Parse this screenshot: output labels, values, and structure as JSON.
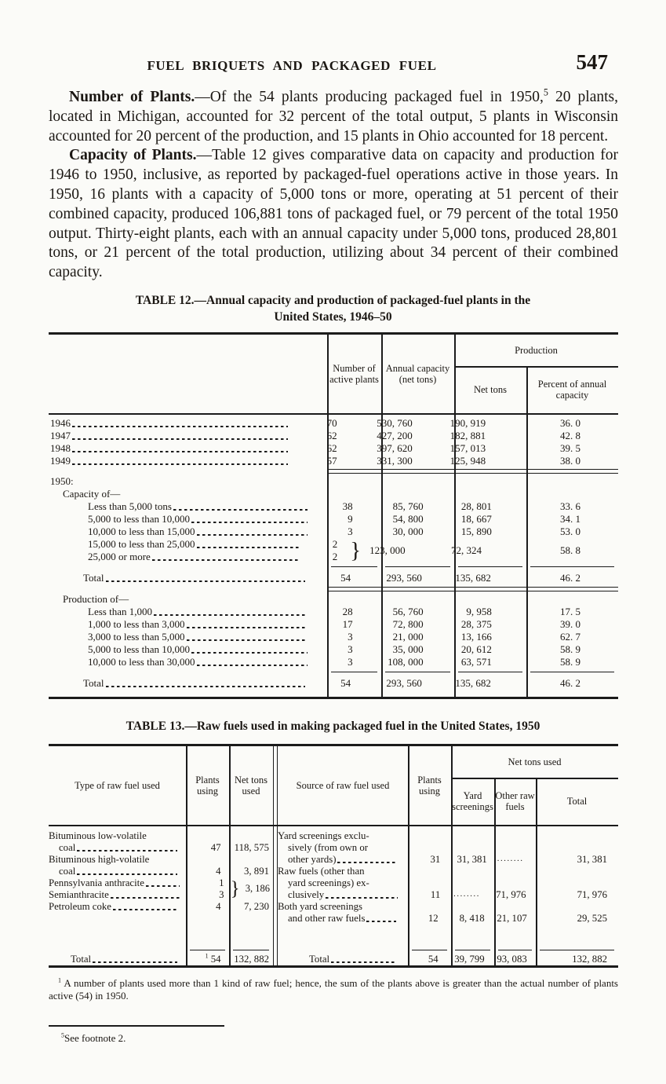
{
  "page": {
    "running_head": "FUEL BRIQUETS AND PACKAGED FUEL",
    "page_number": "547"
  },
  "paragraphs": {
    "p1": {
      "lead": "Number of Plants.",
      "pre": "—Of the 54 plants producing packaged fuel in 1950,",
      "sup": "5",
      "post": " 20 plants, located in Michigan, accounted for 32 percent of the total output, 5 plants in Wisconsin accounted for 20 percent of the production, and 15 plants in Ohio accounted for 18 percent."
    },
    "p2": {
      "lead": "Capacity of Plants.",
      "body": "—Table 12 gives comparative data on capacity and production for 1946 to 1950, inclusive, as reported by packaged-fuel operations active in those years.  In 1950, 16 plants with a capacity of 5,000 tons or more, operating at 51 percent of their combined capacity, produced 106,881 tons of packaged fuel, or 79 percent of the total 1950 output.  Thirty-eight plants, each with an annual capacity under 5,000 tons, produced 28,801 tons, or 21 percent of the total production, utilizing about 34 percent of their combined capacity."
    }
  },
  "table12": {
    "title_label": "TABLE 12.",
    "title_line1": "—Annual capacity and production of packaged-fuel plants in the",
    "title_line2": "United States, 1946–50",
    "headers": {
      "plants": "Number of active plants",
      "capacity": "Annual ca­pacity (net tons)",
      "production": "Production",
      "net": "Net tons",
      "pct": "Percent of annual capacity"
    },
    "brace": "}",
    "rows_years": [
      {
        "label": "1946",
        "plants": "70",
        "capacity": "530, 760",
        "net": "190, 919",
        "pct": "36. 0"
      },
      {
        "label": "1947",
        "plants": "62",
        "capacity": "427, 200",
        "net": "182, 881",
        "pct": "42. 8"
      },
      {
        "label": "1948",
        "plants": "62",
        "capacity": "397, 620",
        "net": "157, 013",
        "pct": "39. 5"
      },
      {
        "label": "1949",
        "plants": "57",
        "capacity": "331, 300",
        "net": "125, 948",
        "pct": "38. 0"
      }
    ],
    "section_1950": "1950:",
    "capacity_heading": "Capacity of—",
    "rows_capacity": [
      {
        "label": "Less than 5,000 tons",
        "plants": "38",
        "capacity": "85, 760",
        "net": "28, 801",
        "pct": "33. 6"
      },
      {
        "label": "5,000 to less than 10,000",
        "plants": "9",
        "capacity": "54, 800",
        "net": "18, 667",
        "pct": "34. 1"
      },
      {
        "label": "10,000 to less than 15,000",
        "plants": "3",
        "capacity": "30, 000",
        "net": "15, 890",
        "pct": "53. 0"
      }
    ],
    "braced": {
      "row_a": {
        "label": "15,000 to less than 25,000",
        "plants": "2"
      },
      "row_b": {
        "label": "25,000 or more",
        "plants": "2"
      },
      "capacity": "123, 000",
      "net": "72, 324",
      "pct": "58. 8"
    },
    "total_capacity": {
      "label": "Total",
      "plants": "54",
      "capacity": "293, 560",
      "net": "135, 682",
      "pct": "46. 2"
    },
    "production_heading": "Production of—",
    "rows_production": [
      {
        "label": "Less than 1,000",
        "plants": "28",
        "capacity": "56, 760",
        "net": "9, 958",
        "pct": "17. 5"
      },
      {
        "label": "1,000 to less than 3,000",
        "plants": "17",
        "capacity": "72, 800",
        "net": "28, 375",
        "pct": "39. 0"
      },
      {
        "label": "3,000 to less than 5,000",
        "plants": "3",
        "capacity": "21, 000",
        "net": "13, 166",
        "pct": "62. 7"
      },
      {
        "label": "5,000 to less than 10,000",
        "plants": "3",
        "capacity": "35, 000",
        "net": "20, 612",
        "pct": "58. 9"
      },
      {
        "label": "10,000 to less than 30,000",
        "plants": "3",
        "capacity": "108, 000",
        "net": "63, 571",
        "pct": "58. 9"
      }
    ],
    "total_production": {
      "label": "Total",
      "plants": "54",
      "capacity": "293, 560",
      "net": "135, 682",
      "pct": "46. 2"
    }
  },
  "table13": {
    "title_label": "TABLE 13.",
    "title_rest": "—Raw fuels used in making packaged fuel in the United States, 1950",
    "left": {
      "brace": "}",
      "headers": {
        "type": "Type of raw fuel used",
        "plants": "Plants using",
        "tons": "Net tons used"
      },
      "rows": [
        {
          "line1": "Bituminous low-volatile",
          "line2": "coal",
          "plants": "47",
          "tons": "118, 575"
        },
        {
          "line1": "Bituminous high-volatile",
          "line2": "coal",
          "plants": "4",
          "tons": "3, 891"
        }
      ],
      "braced": {
        "row_a": {
          "label": "Pennsylvania anthracite",
          "plants": "1"
        },
        "row_b": {
          "label": "Semianthracite",
          "plants": "3"
        },
        "tons": "3, 186"
      },
      "row_coke": {
        "label": "Petroleum coke",
        "plants": "4",
        "tons": "7, 230"
      },
      "total": {
        "label": "Total",
        "plants_sup": "1",
        "plants": "54",
        "tons": "132, 882"
      }
    },
    "right": {
      "headers": {
        "source": "Source of raw fuel used",
        "plants": "Plants using",
        "net_tons_used": "Net tons used",
        "yard": "Yard screen­ings",
        "other": "Other raw fuels",
        "total": "Total"
      },
      "rows": [
        {
          "line1": "Yard screenings exclu-",
          "line2": "sively (from own or",
          "last": "other yards)",
          "plants": "31",
          "yard": "31, 381",
          "other_dots": "........",
          "total": "31, 381"
        },
        {
          "line1": "Raw fuels (other than",
          "line2": "yard screenings) ex-",
          "last": "clusively",
          "plants": "11",
          "yard_dots": "........",
          "other": "71, 976",
          "total": "71, 976"
        },
        {
          "line1": "Both yard screenings",
          "last": "and other raw fuels",
          "plants": "12",
          "yard": "8, 418",
          "other": "21, 107",
          "total": "29, 525"
        }
      ],
      "total": {
        "label": "Total",
        "plants": "54",
        "yard": "39, 799",
        "other": "93, 083",
        "total": "132, 882"
      }
    }
  },
  "footnotes": {
    "fn1_sup": "1",
    "fn1": " A number of plants used more than 1 kind of raw fuel; hence, the sum of the plants above is greater than the actual number of plants active (54) in 1950.",
    "fn5_sup": "5",
    "fn5": "See footnote 2."
  }
}
